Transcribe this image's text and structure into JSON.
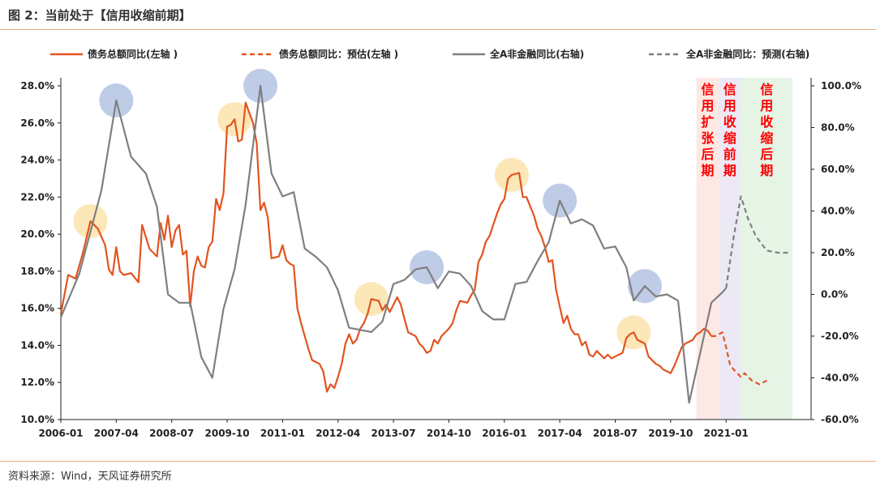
{
  "title": "图 2：当前处于【信用收缩前期】",
  "source": "资料来源：Wind，天风证券研究所",
  "colors": {
    "debt": "#e2541f",
    "nonfin": "#7f7f7f",
    "zone1": "#fde8e4",
    "zone2": "#ece9f5",
    "zone3": "#e6f4e6",
    "zone_text": "#ff0000",
    "circle_orange": "#fce4b0",
    "circle_blue": "#b7c7e4",
    "rule": "#e9a878"
  },
  "chart_data": {
    "type": "line",
    "x_ticks": [
      "2006-01",
      "2007-04",
      "2008-07",
      "2009-10",
      "2011-01",
      "2012-04",
      "2013-07",
      "2014-10",
      "2016-01",
      "2017-04",
      "2018-07",
      "2019-10",
      "2021-01"
    ],
    "y_left_ticks": [
      "10.0%",
      "12.0%",
      "14.0%",
      "16.0%",
      "18.0%",
      "20.0%",
      "22.0%",
      "24.0%",
      "26.0%",
      "28.0%"
    ],
    "y_right_ticks": [
      "-60.0%",
      "-40.0%",
      "-20.0%",
      "0.0%",
      "20.0%",
      "40.0%",
      "60.0%",
      "80.0%",
      "100.0%"
    ],
    "ylim_left": [
      10,
      28
    ],
    "ylim_right": [
      -60,
      100
    ],
    "xlim": [
      "2006-01",
      "2022-12"
    ],
    "legend_position": "top",
    "series": [
      {
        "name": "债务总额同比(左轴 )",
        "axis": "left",
        "style": "solid",
        "points": [
          [
            "2006-01",
            15.7
          ],
          [
            "2006-03",
            17.8
          ],
          [
            "2006-05",
            17.6
          ],
          [
            "2006-07",
            19.0
          ],
          [
            "2006-09",
            20.7
          ],
          [
            "2006-11",
            20.3
          ],
          [
            "2007-01",
            19.4
          ],
          [
            "2007-02",
            18.1
          ],
          [
            "2007-03",
            17.8
          ],
          [
            "2007-04",
            19.3
          ],
          [
            "2007-05",
            18.0
          ],
          [
            "2007-06",
            17.8
          ],
          [
            "2007-08",
            17.9
          ],
          [
            "2007-10",
            17.4
          ],
          [
            "2007-11",
            20.5
          ],
          [
            "2008-01",
            19.2
          ],
          [
            "2008-03",
            18.8
          ],
          [
            "2008-04",
            20.6
          ],
          [
            "2008-05",
            19.7
          ],
          [
            "2008-06",
            21.0
          ],
          [
            "2008-07",
            19.3
          ],
          [
            "2008-08",
            20.2
          ],
          [
            "2008-09",
            20.5
          ],
          [
            "2008-10",
            18.9
          ],
          [
            "2008-11",
            19.1
          ],
          [
            "2008-12",
            16.1
          ],
          [
            "2009-01",
            18.0
          ],
          [
            "2009-02",
            18.8
          ],
          [
            "2009-03",
            18.3
          ],
          [
            "2009-04",
            18.2
          ],
          [
            "2009-05",
            19.3
          ],
          [
            "2009-06",
            19.6
          ],
          [
            "2009-07",
            21.9
          ],
          [
            "2009-08",
            21.3
          ],
          [
            "2009-09",
            22.2
          ],
          [
            "2009-10",
            25.8
          ],
          [
            "2009-11",
            25.9
          ],
          [
            "2009-12",
            26.2
          ],
          [
            "2010-01",
            25.0
          ],
          [
            "2010-02",
            25.1
          ],
          [
            "2010-03",
            27.1
          ],
          [
            "2010-05",
            26.0
          ],
          [
            "2010-06",
            24.9
          ],
          [
            "2010-07",
            21.3
          ],
          [
            "2010-08",
            21.7
          ],
          [
            "2010-09",
            20.9
          ],
          [
            "2010-10",
            18.7
          ],
          [
            "2010-12",
            18.8
          ],
          [
            "2011-01",
            19.4
          ],
          [
            "2011-02",
            18.6
          ],
          [
            "2011-03",
            18.4
          ],
          [
            "2011-04",
            18.3
          ],
          [
            "2011-05",
            16.0
          ],
          [
            "2011-06",
            15.2
          ],
          [
            "2011-07",
            14.5
          ],
          [
            "2011-08",
            13.8
          ],
          [
            "2011-09",
            13.2
          ],
          [
            "2011-10",
            13.1
          ],
          [
            "2011-11",
            13.0
          ],
          [
            "2011-12",
            12.6
          ],
          [
            "2012-01",
            11.5
          ],
          [
            "2012-02",
            11.9
          ],
          [
            "2012-03",
            11.7
          ],
          [
            "2012-04",
            12.3
          ],
          [
            "2012-05",
            13.0
          ],
          [
            "2012-06",
            14.1
          ],
          [
            "2012-07",
            14.6
          ],
          [
            "2012-08",
            14.1
          ],
          [
            "2012-09",
            14.3
          ],
          [
            "2012-10",
            14.9
          ],
          [
            "2012-11",
            15.2
          ],
          [
            "2012-12",
            15.7
          ],
          [
            "2013-01",
            16.5
          ],
          [
            "2013-03",
            16.4
          ],
          [
            "2013-04",
            15.9
          ],
          [
            "2013-05",
            16.2
          ],
          [
            "2013-06",
            15.8
          ],
          [
            "2013-07",
            16.2
          ],
          [
            "2013-08",
            16.6
          ],
          [
            "2013-09",
            16.2
          ],
          [
            "2013-10",
            15.4
          ],
          [
            "2013-11",
            14.7
          ],
          [
            "2014-01",
            14.5
          ],
          [
            "2014-02",
            14.1
          ],
          [
            "2014-03",
            13.9
          ],
          [
            "2014-04",
            13.6
          ],
          [
            "2014-05",
            13.7
          ],
          [
            "2014-06",
            14.3
          ],
          [
            "2014-07",
            14.1
          ],
          [
            "2014-08",
            14.5
          ],
          [
            "2014-09",
            14.7
          ],
          [
            "2014-10",
            14.9
          ],
          [
            "2014-11",
            15.2
          ],
          [
            "2014-12",
            15.9
          ],
          [
            "2015-01",
            16.4
          ],
          [
            "2015-03",
            16.3
          ],
          [
            "2015-04",
            16.7
          ],
          [
            "2015-05",
            17.0
          ],
          [
            "2015-06",
            18.5
          ],
          [
            "2015-07",
            18.9
          ],
          [
            "2015-08",
            19.6
          ],
          [
            "2015-09",
            19.9
          ],
          [
            "2015-10",
            20.5
          ],
          [
            "2015-11",
            21.1
          ],
          [
            "2015-12",
            21.6
          ],
          [
            "2016-01",
            21.9
          ],
          [
            "2016-02",
            23.0
          ],
          [
            "2016-03",
            23.2
          ],
          [
            "2016-05",
            23.3
          ],
          [
            "2016-06",
            22.0
          ],
          [
            "2016-07",
            22.0
          ],
          [
            "2016-08",
            21.5
          ],
          [
            "2016-09",
            21.0
          ],
          [
            "2016-10",
            20.3
          ],
          [
            "2016-11",
            19.9
          ],
          [
            "2016-12",
            19.3
          ],
          [
            "2017-01",
            18.5
          ],
          [
            "2017-02",
            18.6
          ],
          [
            "2017-03",
            17.0
          ],
          [
            "2017-04",
            16.1
          ],
          [
            "2017-05",
            15.2
          ],
          [
            "2017-06",
            15.6
          ],
          [
            "2017-07",
            14.9
          ],
          [
            "2017-08",
            14.6
          ],
          [
            "2017-09",
            14.6
          ],
          [
            "2017-10",
            14.0
          ],
          [
            "2017-11",
            14.2
          ],
          [
            "2017-12",
            13.5
          ],
          [
            "2018-01",
            13.4
          ],
          [
            "2018-02",
            13.7
          ],
          [
            "2018-03",
            13.5
          ],
          [
            "2018-04",
            13.3
          ],
          [
            "2018-05",
            13.5
          ],
          [
            "2018-06",
            13.3
          ],
          [
            "2018-07",
            13.4
          ],
          [
            "2018-08",
            13.5
          ],
          [
            "2018-09",
            13.6
          ],
          [
            "2018-10",
            14.4
          ],
          [
            "2018-11",
            14.6
          ],
          [
            "2018-12",
            14.7
          ],
          [
            "2019-01",
            14.3
          ],
          [
            "2019-02",
            14.2
          ],
          [
            "2019-03",
            14.1
          ],
          [
            "2019-04",
            13.4
          ],
          [
            "2019-05",
            13.2
          ],
          [
            "2019-06",
            13.0
          ],
          [
            "2019-07",
            12.9
          ],
          [
            "2019-08",
            12.7
          ],
          [
            "2019-09",
            12.6
          ],
          [
            "2019-10",
            12.5
          ],
          [
            "2019-11",
            12.9
          ],
          [
            "2019-12",
            13.4
          ],
          [
            "2020-01",
            13.9
          ],
          [
            "2020-02",
            14.1
          ],
          [
            "2020-03",
            14.2
          ],
          [
            "2020-04",
            14.3
          ],
          [
            "2020-05",
            14.6
          ],
          [
            "2020-06",
            14.7
          ],
          [
            "2020-07",
            14.9
          ],
          [
            "2020-08",
            14.8
          ],
          [
            "2020-09",
            14.5
          ]
        ]
      },
      {
        "name": "债务总额同比：预估(左轴 )",
        "axis": "left",
        "style": "dashed",
        "points": [
          [
            "2020-09",
            14.5
          ],
          [
            "2020-10",
            14.5
          ],
          [
            "2020-11",
            14.6
          ],
          [
            "2020-12",
            14.7
          ],
          [
            "2021-01",
            13.9
          ],
          [
            "2021-02",
            13.0
          ],
          [
            "2021-03",
            12.7
          ],
          [
            "2021-04",
            12.5
          ],
          [
            "2021-05",
            12.3
          ],
          [
            "2021-06",
            12.5
          ],
          [
            "2021-07",
            12.3
          ],
          [
            "2021-08",
            12.1
          ],
          [
            "2021-09",
            12.0
          ],
          [
            "2021-10",
            11.9
          ],
          [
            "2021-11",
            12.0
          ],
          [
            "2021-12",
            12.1
          ]
        ]
      },
      {
        "name": "全A非金融同比(右轴)",
        "axis": "right",
        "style": "solid",
        "points": [
          [
            "2006-01",
            -11
          ],
          [
            "2006-06",
            10
          ],
          [
            "2006-12",
            50
          ],
          [
            "2007-04",
            93
          ],
          [
            "2007-08",
            66
          ],
          [
            "2007-12",
            58
          ],
          [
            "2008-03",
            42
          ],
          [
            "2008-06",
            0
          ],
          [
            "2008-09",
            -4
          ],
          [
            "2008-12",
            -4
          ],
          [
            "2009-03",
            -30
          ],
          [
            "2009-06",
            -40
          ],
          [
            "2009-09",
            -7
          ],
          [
            "2009-12",
            12
          ],
          [
            "2010-03",
            43
          ],
          [
            "2010-07",
            100
          ],
          [
            "2010-10",
            58
          ],
          [
            "2011-01",
            47
          ],
          [
            "2011-04",
            49
          ],
          [
            "2011-07",
            22
          ],
          [
            "2011-10",
            18
          ],
          [
            "2012-01",
            13
          ],
          [
            "2012-04",
            2
          ],
          [
            "2012-07",
            -16
          ],
          [
            "2012-10",
            -17
          ],
          [
            "2013-01",
            -18
          ],
          [
            "2013-04",
            -13
          ],
          [
            "2013-07",
            5
          ],
          [
            "2013-10",
            7
          ],
          [
            "2014-01",
            12
          ],
          [
            "2014-04",
            13
          ],
          [
            "2014-07",
            3
          ],
          [
            "2014-10",
            11
          ],
          [
            "2015-01",
            10
          ],
          [
            "2015-04",
            4
          ],
          [
            "2015-07",
            -8
          ],
          [
            "2015-10",
            -12
          ],
          [
            "2016-01",
            -12
          ],
          [
            "2016-04",
            5
          ],
          [
            "2016-07",
            6
          ],
          [
            "2016-10",
            16
          ],
          [
            "2017-01",
            25
          ],
          [
            "2017-04",
            45
          ],
          [
            "2017-07",
            34
          ],
          [
            "2017-10",
            36
          ],
          [
            "2018-01",
            33
          ],
          [
            "2018-04",
            22
          ],
          [
            "2018-07",
            23
          ],
          [
            "2018-10",
            13
          ],
          [
            "2018-12",
            -3
          ],
          [
            "2019-03",
            4
          ],
          [
            "2019-06",
            -1
          ],
          [
            "2019-09",
            0
          ],
          [
            "2019-12",
            -3
          ],
          [
            "2020-03",
            -52
          ],
          [
            "2020-06",
            -28
          ],
          [
            "2020-09",
            -4
          ],
          [
            "2020-12",
            1
          ],
          [
            "2021-01",
            3
          ]
        ]
      },
      {
        "name": "全A非金融同比：预测(右轴)",
        "axis": "right",
        "style": "dashed",
        "points": [
          [
            "2021-01",
            3
          ],
          [
            "2021-03",
            27
          ],
          [
            "2021-05",
            47
          ],
          [
            "2021-07",
            36
          ],
          [
            "2021-09",
            28
          ],
          [
            "2021-12",
            21
          ],
          [
            "2022-03",
            20
          ],
          [
            "2022-06",
            20
          ]
        ]
      }
    ],
    "zones": [
      {
        "label": "信用扩张后期",
        "start": "2020-05",
        "end": "2020-11",
        "fill": "zone1"
      },
      {
        "label": "信用收缩前期",
        "start": "2020-11",
        "end": "2021-05",
        "fill": "zone2"
      },
      {
        "label": "信用收缩后期",
        "start": "2021-05",
        "end": "2022-07",
        "fill": "zone3"
      }
    ],
    "markers": [
      {
        "series": "债务总额同比(左轴 )",
        "date": "2006-09",
        "color": "circle_orange"
      },
      {
        "series": "债务总额同比(左轴 )",
        "date": "2009-12",
        "color": "circle_orange"
      },
      {
        "series": "债务总额同比(左轴 )",
        "date": "2013-01",
        "color": "circle_orange"
      },
      {
        "series": "债务总额同比(左轴 )",
        "date": "2016-03",
        "color": "circle_orange"
      },
      {
        "series": "债务总额同比(左轴 )",
        "date": "2018-12",
        "color": "circle_orange"
      },
      {
        "series": "全A非金融同比(右轴)",
        "date": "2007-04",
        "color": "circle_blue"
      },
      {
        "series": "全A非金融同比(右轴)",
        "date": "2010-07",
        "color": "circle_blue"
      },
      {
        "series": "全A非金融同比(右轴)",
        "date": "2014-04",
        "color": "circle_blue"
      },
      {
        "series": "全A非金融同比(右轴)",
        "date": "2017-04",
        "color": "circle_blue"
      },
      {
        "series": "全A非金融同比(右轴)",
        "date": "2019-03",
        "color": "circle_blue"
      }
    ]
  }
}
